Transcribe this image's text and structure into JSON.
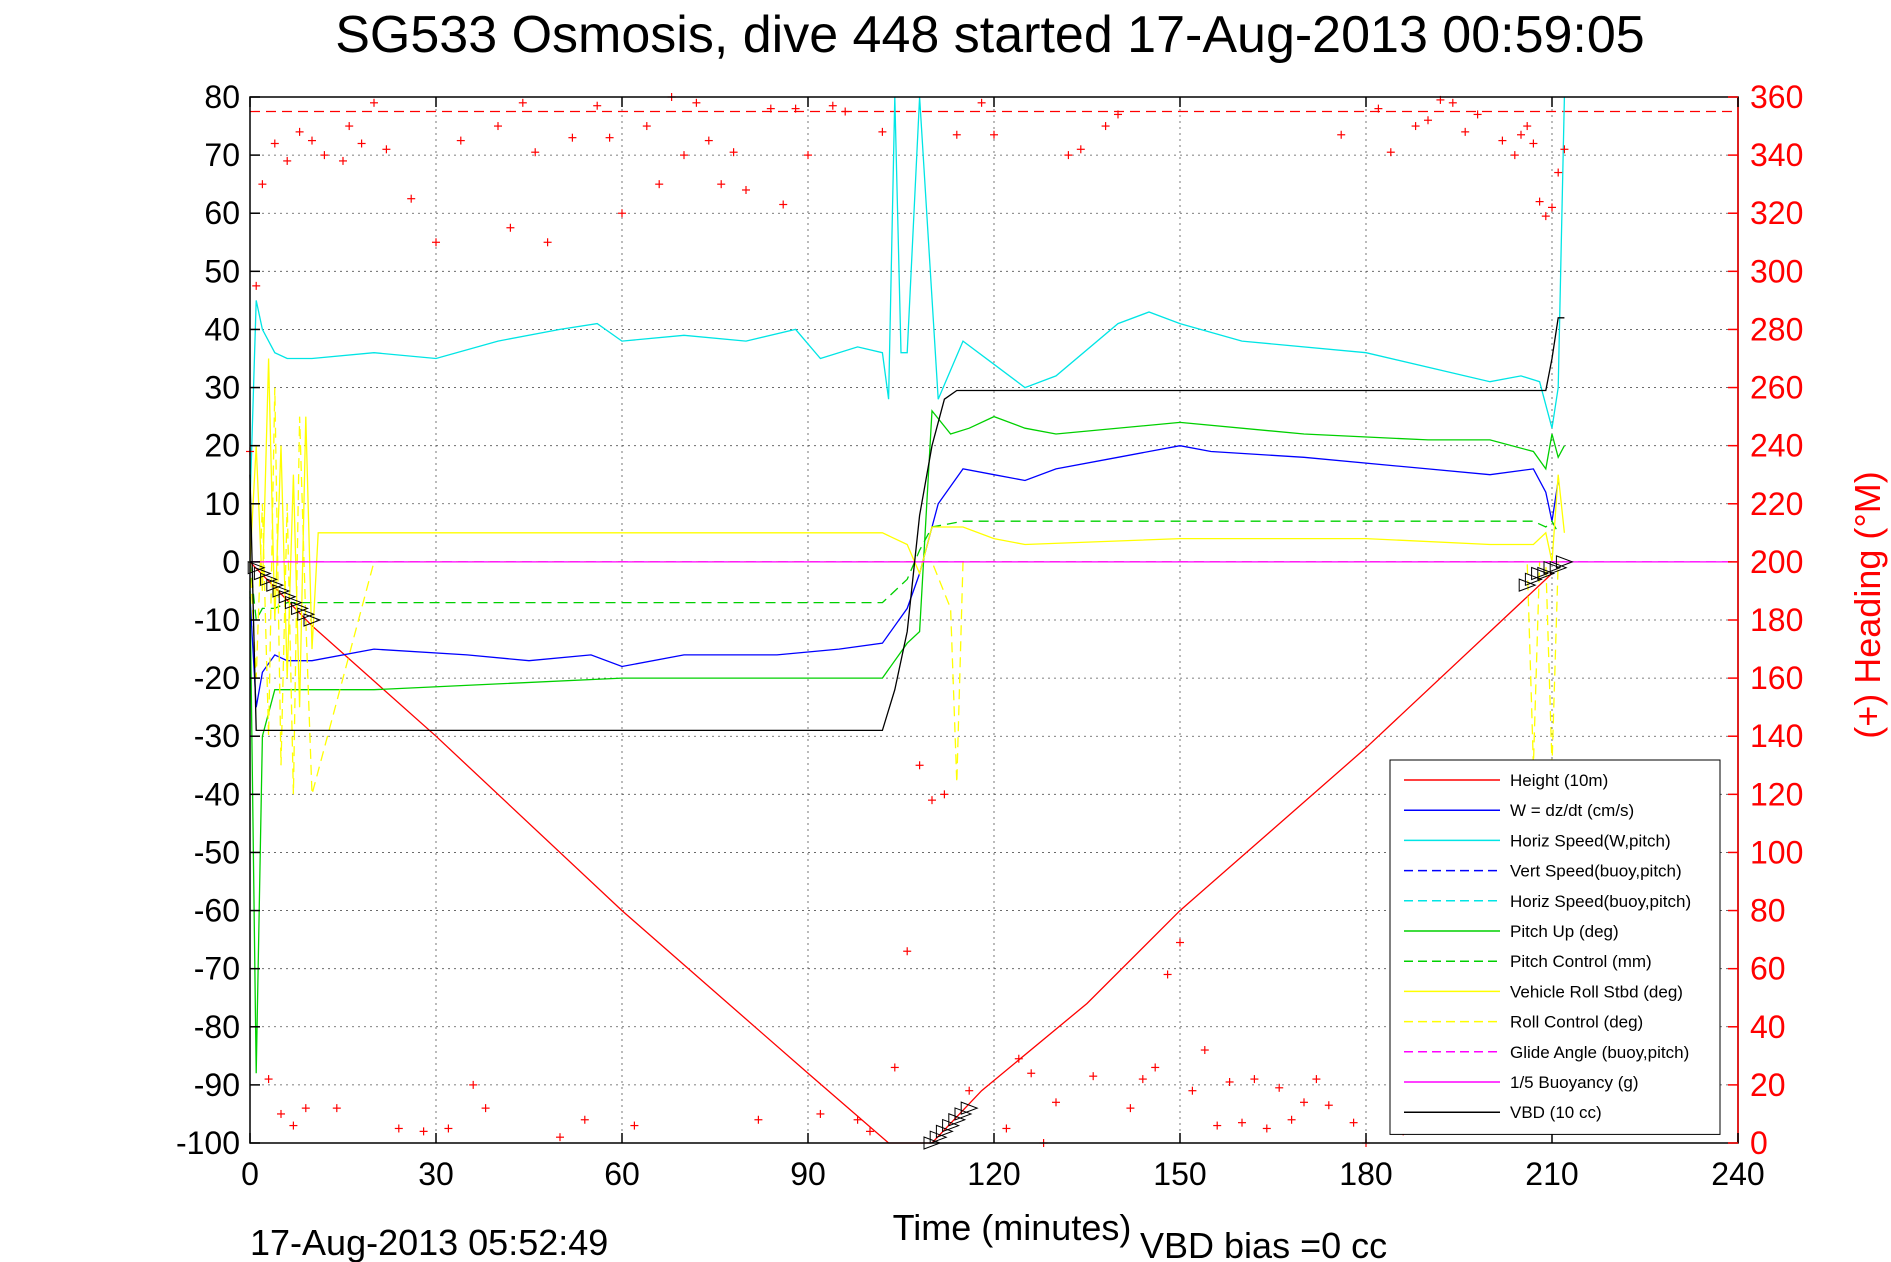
{
  "chart_data": {
    "type": "line",
    "title": "SG533 Osmosis, dive 448 started 17-Aug-2013 00:59:05",
    "xlabel": "Time (minutes)",
    "ylabel": "",
    "ylabel_right": "(+) Heading (°M)",
    "xlim": [
      0,
      240
    ],
    "ylim": [
      -100,
      80
    ],
    "ylim_right": [
      0,
      360
    ],
    "x_ticks": [
      "0",
      "30",
      "60",
      "90",
      "120",
      "150",
      "180",
      "210",
      "240"
    ],
    "y_ticks": [
      "-100",
      "-90",
      "-80",
      "-70",
      "-60",
      "-50",
      "-40",
      "-30",
      "-20",
      "-10",
      "0",
      "10",
      "20",
      "30",
      "40",
      "50",
      "60",
      "70",
      "80"
    ],
    "y_ticks_right": [
      "0",
      "20",
      "40",
      "60",
      "80",
      "100",
      "120",
      "140",
      "160",
      "180",
      "200",
      "220",
      "240",
      "260",
      "280",
      "300",
      "320",
      "340",
      "360"
    ],
    "grid": true,
    "legend_position": "bottom-right",
    "footer_left": "17-Aug-2013 05:52:49",
    "footer_right": "VBD bias =0 cc",
    "colors": {
      "red": "#ff0000",
      "blue": "#0000ff",
      "cyan": "#00e5e5",
      "green": "#00d000",
      "yellow": "#ffff00",
      "magenta": "#ff00ff",
      "black": "#000000"
    },
    "series": [
      {
        "name": "Height (10m)",
        "color": "#ff0000",
        "dash": "solid",
        "x": [
          0,
          10,
          30,
          60,
          90,
          103,
          110,
          118,
          135,
          150,
          180,
          200,
          210
        ],
        "y": [
          0,
          -11,
          -30,
          -60,
          -88,
          -100,
          -100,
          -91,
          -76,
          -60,
          -32,
          -12,
          -2
        ]
      },
      {
        "name": "W = dz/dt (cm/s)",
        "color": "#0000ff",
        "dash": "solid",
        "x": [
          0,
          1,
          2,
          4,
          6,
          10,
          20,
          35,
          45,
          55,
          60,
          70,
          85,
          95,
          102,
          106,
          108,
          111,
          115,
          120,
          125,
          130,
          140,
          150,
          155,
          170,
          190,
          200,
          207,
          209,
          210,
          211
        ],
        "y": [
          -6,
          -25,
          -19,
          -16,
          -17,
          -17,
          -15,
          -16,
          -17,
          -16,
          -18,
          -16,
          -16,
          -15,
          -14,
          -8,
          -2,
          10,
          16,
          15,
          14,
          16,
          18,
          20,
          19,
          18,
          16,
          15,
          16,
          12,
          7,
          14
        ]
      },
      {
        "name": "Horiz Speed(W,pitch)",
        "color": "#00e5e5",
        "dash": "solid",
        "x": [
          0,
          1,
          2,
          4,
          6,
          10,
          20,
          30,
          40,
          50,
          56,
          60,
          70,
          80,
          88,
          92,
          98,
          102,
          103,
          104,
          105,
          106,
          108,
          111,
          115,
          120,
          125,
          130,
          140,
          145,
          150,
          160,
          180,
          200,
          205,
          208,
          210,
          211,
          212
        ],
        "y": [
          10,
          45,
          40,
          36,
          35,
          35,
          36,
          35,
          38,
          40,
          41,
          38,
          39,
          38,
          40,
          35,
          37,
          36,
          28,
          80,
          36,
          36,
          80,
          28,
          38,
          34,
          30,
          32,
          41,
          43,
          41,
          38,
          36,
          31,
          32,
          31,
          23,
          30,
          80
        ]
      },
      {
        "name": "Vert Speed(buoy,pitch)",
        "color": "#0000ff",
        "dash": "dashed",
        "x": [],
        "y": []
      },
      {
        "name": "Horiz Speed(buoy,pitch)",
        "color": "#00e5e5",
        "dash": "dashed",
        "x": [],
        "y": []
      },
      {
        "name": "Pitch Up (deg)",
        "color": "#00d000",
        "dash": "solid",
        "x": [
          0,
          1,
          2,
          4,
          6,
          10,
          20,
          40,
          60,
          80,
          95,
          102,
          106,
          108,
          110,
          113,
          116,
          120,
          125,
          130,
          150,
          170,
          190,
          200,
          207,
          209,
          210,
          211,
          212
        ],
        "y": [
          -5,
          -88,
          -30,
          -22,
          -22,
          -22,
          -22,
          -21,
          -20,
          -20,
          -20,
          -20,
          -14,
          -12,
          26,
          22,
          23,
          25,
          23,
          22,
          24,
          22,
          21,
          21,
          19,
          16,
          22,
          18,
          20
        ]
      },
      {
        "name": "Pitch Control (mm)",
        "color": "#00d000",
        "dash": "dashed",
        "x": [
          0,
          1,
          2,
          4,
          6,
          10,
          30,
          60,
          90,
          102,
          106,
          108,
          110,
          115,
          125,
          150,
          180,
          200,
          207,
          209,
          210,
          211
        ],
        "y": [
          0,
          -10,
          -8,
          -8,
          -7,
          -7,
          -7,
          -7,
          -7,
          -7,
          -3,
          2,
          6,
          7,
          7,
          7,
          7,
          7,
          7,
          6,
          7,
          5
        ]
      },
      {
        "name": "Vehicle Roll Stbd (deg)",
        "color": "#ffff00",
        "dash": "solid",
        "x": [
          0,
          1,
          2,
          3,
          4,
          5,
          6,
          7,
          8,
          9,
          10,
          11,
          15,
          20,
          30,
          60,
          90,
          102,
          106,
          108,
          110,
          115,
          120,
          125,
          150,
          180,
          200,
          207,
          209,
          210,
          211,
          212
        ],
        "y": [
          0,
          20,
          -5,
          35,
          -10,
          20,
          -20,
          15,
          -25,
          25,
          -15,
          5,
          5,
          5,
          5,
          5,
          5,
          5,
          3,
          -2,
          6,
          6,
          4,
          3,
          4,
          4,
          3,
          3,
          5,
          0,
          15,
          5
        ]
      },
      {
        "name": "Roll Control (deg)",
        "color": "#ffff00",
        "dash": "dashed",
        "x": [
          0,
          1,
          2,
          3,
          4,
          5,
          6,
          7,
          8,
          9,
          10,
          20,
          60,
          100,
          110,
          113,
          114,
          115,
          120,
          150,
          200,
          206,
          207,
          208,
          209,
          210,
          211,
          212
        ],
        "y": [
          0,
          -20,
          10,
          -30,
          30,
          -35,
          10,
          -40,
          25,
          -10,
          -40,
          0,
          0,
          0,
          0,
          -8,
          -38,
          0,
          0,
          0,
          0,
          0,
          -35,
          0,
          0,
          -35,
          0,
          0
        ]
      },
      {
        "name": "Glide Angle (buoy,pitch)",
        "color": "#ff00ff",
        "dash": "dashed",
        "x": [
          0,
          240
        ],
        "y": [
          0,
          0
        ]
      },
      {
        "name": "1/5 Buoyancy (g)",
        "color": "#ff00ff",
        "dash": "solid",
        "x": [
          0,
          240
        ],
        "y": [
          0,
          0
        ]
      },
      {
        "name": "VBD (10 cc)",
        "color": "#000000",
        "dash": "solid",
        "x": [
          0,
          1,
          2,
          102,
          104,
          106,
          108,
          110,
          112,
          114,
          116,
          200,
          209,
          210,
          211,
          212
        ],
        "y": [
          15,
          -29,
          -29,
          -29,
          -22,
          -12,
          8,
          20,
          28,
          29.5,
          29.5,
          29.5,
          29.5,
          35,
          42,
          42
        ]
      }
    ],
    "heading_reference_right": 355,
    "heading_points": {
      "name": "Heading",
      "color": "#ff0000",
      "x": [
        0,
        1,
        2,
        3,
        4,
        5,
        6,
        7,
        8,
        9,
        10,
        12,
        14,
        15,
        16,
        18,
        20,
        22,
        24,
        26,
        28,
        30,
        32,
        34,
        36,
        38,
        40,
        42,
        44,
        46,
        48,
        50,
        52,
        54,
        56,
        58,
        60,
        62,
        64,
        66,
        68,
        70,
        72,
        74,
        76,
        78,
        80,
        82,
        84,
        86,
        88,
        90,
        92,
        94,
        96,
        98,
        100,
        102,
        104,
        106,
        108,
        110,
        112,
        114,
        116,
        118,
        120,
        122,
        124,
        126,
        128,
        130,
        132,
        134,
        136,
        138,
        140,
        142,
        144,
        146,
        148,
        150,
        152,
        154,
        156,
        158,
        160,
        162,
        164,
        166,
        168,
        170,
        172,
        174,
        176,
        178,
        180,
        182,
        184,
        186,
        188,
        190,
        192,
        194,
        196,
        198,
        200,
        202,
        204,
        205,
        206,
        207,
        208,
        209,
        210,
        211,
        212
      ],
      "y": [
        238,
        295,
        330,
        22,
        344,
        10,
        338,
        6,
        348,
        12,
        345,
        340,
        12,
        338,
        350,
        344,
        358,
        342,
        5,
        325,
        4,
        310,
        5,
        345,
        20,
        12,
        350,
        315,
        358,
        341,
        310,
        2,
        346,
        8,
        357,
        346,
        320,
        6,
        350,
        330,
        360,
        340,
        358,
        345,
        330,
        341,
        328,
        8,
        356,
        323,
        356,
        340,
        10,
        357,
        355,
        8,
        4,
        348,
        26,
        66,
        130,
        118,
        120,
        347,
        18,
        358,
        347,
        5,
        29,
        24,
        0,
        14,
        340,
        342,
        23,
        350,
        354,
        12,
        22,
        26,
        58,
        69,
        18,
        32,
        6,
        21,
        7,
        22,
        5,
        19,
        8,
        14,
        22,
        13,
        347,
        7,
        0,
        356,
        341,
        4,
        350,
        352,
        359,
        358,
        348,
        354,
        10,
        345,
        340,
        347,
        350,
        344,
        324,
        319,
        322,
        334,
        342
      ]
    },
    "vehicle_glyph_points": {
      "x": [
        1,
        2,
        3,
        4,
        5,
        6,
        7,
        8,
        9,
        10,
        110,
        111,
        112,
        113,
        114,
        115,
        116,
        206,
        207,
        208,
        209,
        210,
        211,
        212
      ],
      "y": [
        -1,
        -2,
        -3,
        -4,
        -5,
        -6,
        -7,
        -8,
        -9,
        -10,
        -100,
        -99,
        -98,
        -97,
        -96,
        -95,
        -94,
        -4,
        -3,
        -2,
        -2,
        -1,
        -1,
        0
      ]
    }
  }
}
